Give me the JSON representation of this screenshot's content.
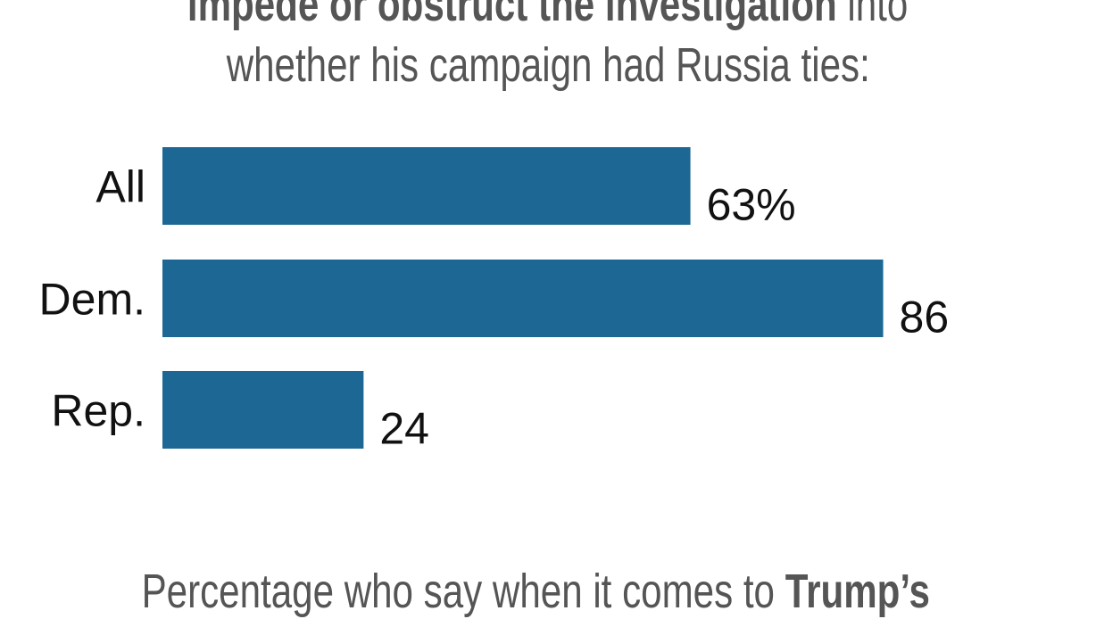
{
  "chart_data": {
    "type": "bar",
    "orientation": "horizontal",
    "title_lines": [
      {
        "bold": "impede or obstruct the investigation",
        "regular": " into"
      },
      {
        "bold": "",
        "regular": "whether his campaign had Russia ties:"
      }
    ],
    "categories": [
      "All",
      "Dem.",
      "Rep."
    ],
    "values": [
      63,
      86,
      24
    ],
    "value_labels": [
      "63%",
      "86",
      "24"
    ],
    "xlim": [
      0,
      100
    ],
    "grid": false,
    "bar_color": "#1c6794",
    "next_title": {
      "regular": "Percentage who say when it comes to ",
      "bold": "Trump’s"
    }
  }
}
